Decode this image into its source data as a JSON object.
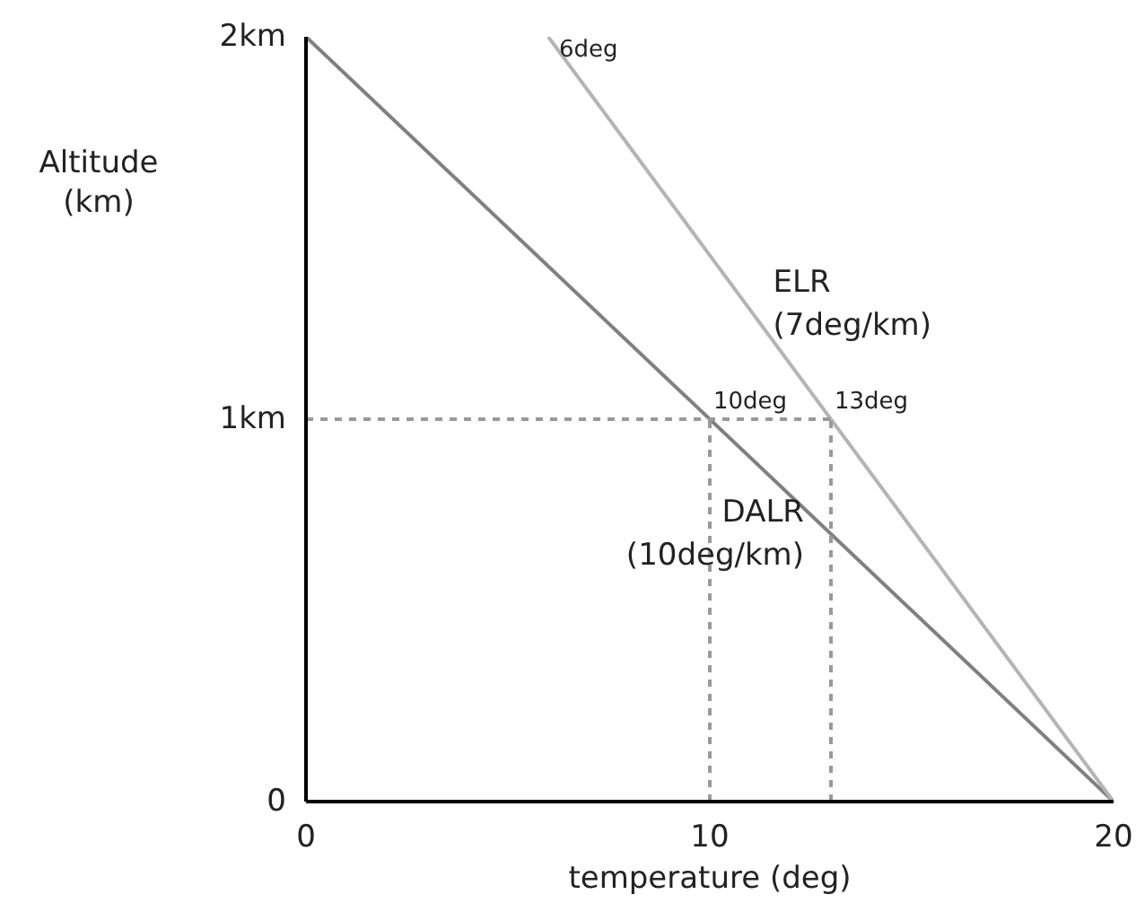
{
  "chart_data": {
    "type": "line",
    "xlabel": "temperature (deg)",
    "ylabel": "Altitude\n(km)",
    "xlim": [
      0,
      20
    ],
    "ylim": [
      0,
      2
    ],
    "xticks": [
      0,
      10,
      20
    ],
    "yticks": [
      {
        "value": 0,
        "label": "0"
      },
      {
        "value": 1,
        "label": "1km"
      },
      {
        "value": 2,
        "label": "2km"
      }
    ],
    "grid": false,
    "legend": false,
    "marker": "none",
    "series": [
      {
        "name": "DALR\n(10deg/km)",
        "color": "#808080",
        "x": [
          0,
          20
        ],
        "values": [
          2,
          0
        ],
        "line_style": "solid"
      },
      {
        "name": "ELR\n(7deg/km)",
        "color": "#b4b4b4",
        "x": [
          6,
          20
        ],
        "values": [
          2,
          0
        ],
        "line_style": "solid"
      },
      {
        "color": "#999999",
        "x": [
          0,
          13
        ],
        "values": [
          1,
          1
        ],
        "line_style": "dashed"
      },
      {
        "color": "#999999",
        "x": [
          10,
          10
        ],
        "values": [
          0,
          1
        ],
        "line_style": "dashed"
      },
      {
        "color": "#999999",
        "x": [
          13,
          13
        ],
        "values": [
          0,
          1
        ],
        "line_style": "dashed"
      }
    ],
    "annotations": [
      {
        "text": "6deg",
        "x": 6,
        "y": 2
      },
      {
        "text": "10deg",
        "x": 10,
        "y": 1
      },
      {
        "text": "13deg",
        "x": 13,
        "y": 1
      }
    ]
  }
}
